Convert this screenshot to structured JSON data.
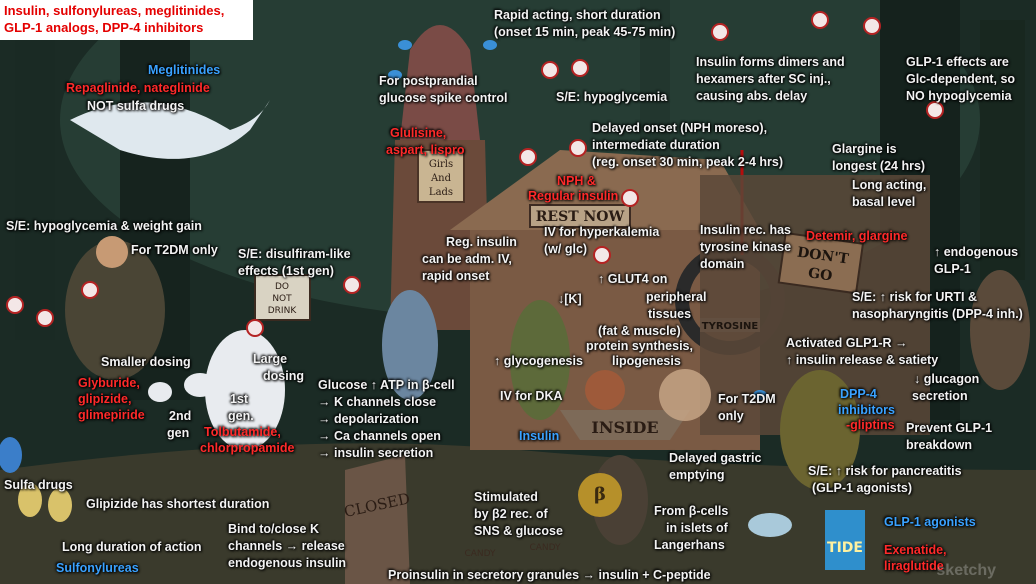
{
  "title": {
    "line1": "Insulin, sulfonylureas, meglitinides,",
    "line2": "GLP-1 analogs, DPP-4 inhibitors"
  },
  "labels": {
    "meglitinides": "Meglitinides",
    "repaglinide": "Repaglinide, nateglinide",
    "not_sulfa": "NOT sulfa drugs",
    "rapid_acting_1": "Rapid acting, short duration",
    "rapid_acting_2": "(onset 15 min, peak 45-75 min)",
    "postprandial_1": "For postprandial",
    "postprandial_2": "glucose spike control",
    "se_hypoglycemia_top": "S/E: hypoglycemia",
    "dimers_1": "Insulin forms dimers and",
    "dimers_2": "hexamers   after  SC  inj.,",
    "dimers_3": "causing abs. delay",
    "glp1_effects_1": "GLP-1 effects are",
    "glp1_effects_2": "Glc-dependent, so",
    "glp1_effects_3": "NO hypoglycemia",
    "glulisine_1": "Glulisine,",
    "glulisine_2": "aspart, lispro",
    "delayed_onset_1": "Delayed onset (NPH moreso),",
    "delayed_onset_2": "intermediate duration",
    "delayed_onset_3": "(reg. onset 30 min, peak 2-4 hrs)",
    "glargine_longest_1": "Glargine is",
    "glargine_longest_2": "longest (24 hrs)",
    "long_acting_1": "Long acting,",
    "long_acting_2": "basal level",
    "nph_1": "NPH &",
    "nph_2": "Regular insulin",
    "se_hypo_weight": "S/E: hypoglycemia & weight gain",
    "t2dm_only": "For T2DM only",
    "disulfiram_1": "S/E: disulfiram-like",
    "disulfiram_2": "effects (1st gen)",
    "reg_insulin_1": "Reg. insulin",
    "reg_insulin_2": "can be adm. IV,",
    "reg_insulin_3": "rapid onset",
    "hyperkalemia_1": "IV for hyperkalemia",
    "hyperkalemia_2": "(w/ glc)",
    "tyrosine_1": "Insulin rec. has",
    "tyrosine_2": "tyrosine kinase",
    "tyrosine_3": "domain",
    "detemir": "Detemir, glargine",
    "endogenous_1": "↑ endogenous",
    "endogenous_2": "GLP-1",
    "glut4_1": "↑ GLUT4 on",
    "glut4_2": "peripheral",
    "glut4_3": "tissues",
    "k_ion": "↓[K]",
    "fat_muscle": "(fat & muscle)",
    "protein_synth_1": "protein synthesis,",
    "protein_synth_2": "lipogenesis",
    "urti_1": "S/E: ↑ risk for URTI &",
    "urti_2": "nasopharyngitis (DPP-4 inh.)",
    "glycogenesis": "↑ glycogenesis",
    "activated_glp1_1": "Activated GLP1-R →",
    "activated_glp1_2": "↑ insulin release & satiety",
    "smaller_dosing": "Smaller dosing",
    "large_dosing_1": "Large",
    "large_dosing_2": "dosing",
    "glucagon_1": "↓ glucagon",
    "glucagon_2": "secretion",
    "glyburide_1": "Glyburide,",
    "glyburide_2": "glipizide,",
    "glyburide_3": "glimepiride",
    "second_gen_1": "2nd",
    "second_gen_2": "gen",
    "first_gen_1": "1st",
    "first_gen_2": "gen.",
    "glucose_atp_1": "Glucose ↑ ATP in β-cell",
    "glucose_atp_2": "→ K channels close",
    "glucose_atp_3": "→ depolarization",
    "glucose_atp_4": "→ Ca channels open",
    "glucose_atp_5": "→ insulin secretion",
    "iv_dka": "IV for DKA",
    "t2dm_only_2_1": "For T2DM",
    "t2dm_only_2_2": "only",
    "dpp4_1": "DPP-4",
    "dpp4_2": "inhibitors",
    "dpp4_3": "-gliptins",
    "prevent_glp1_1": "Prevent GLP-1",
    "prevent_glp1_2": "breakdown",
    "tolbutamide_1": "Tolbutamide,",
    "tolbutamide_2": "chlorpropamide",
    "insulin": "Insulin",
    "delayed_gastric_1": "Delayed gastric",
    "delayed_gastric_2": "emptying",
    "pancreatitis_1": "S/E: ↑ risk for pancreatitis",
    "pancreatitis_2": "(GLP-1 agonists)",
    "sulfa_drugs": "Sulfa drugs",
    "glipizide_shortest": "Glipizide has shortest duration",
    "stimulated_1": "Stimulated",
    "stimulated_2": "by β2 rec. of",
    "stimulated_3": "SNS & glucose",
    "beta_cells_1": "From β-cells",
    "beta_cells_2": "in islets of",
    "beta_cells_3": "Langerhans",
    "glp1_agonists": "GLP-1 agonists",
    "bind_k_1": "Bind to/close K",
    "bind_k_2": "channels → release",
    "bind_k_3": "endogenous insulin",
    "long_duration": "Long duration of action",
    "sulfonylureas": "Sulfonylureas",
    "exenatide_1": "Exenatide,",
    "exenatide_2": "liraglutide",
    "proinsulin": "Proinsulin in secretory granules → insulin + C-peptide"
  },
  "signs": {
    "rest_now": "REST NOW",
    "girls_lads_1": "Girls",
    "girls_lads_2": "And",
    "girls_lads_3": "Lads",
    "do_not_drink_1": "DO",
    "do_not_drink_2": "NOT",
    "do_not_drink_3": "DRINK",
    "dont_go_1": "DON'T",
    "dont_go_2": "GO",
    "tyrosine": "TYROSINE",
    "inside": "INSIDE",
    "closed": "CLOSED",
    "candy": "CANDY",
    "tide": "TIDE",
    "beta": "β",
    "watermark": "sketchy"
  },
  "colors": {
    "white_label": "#f3f3f3",
    "red_label": "#ff2a2a",
    "blue_label": "#3aa2ff",
    "title_red": "#e40000"
  }
}
